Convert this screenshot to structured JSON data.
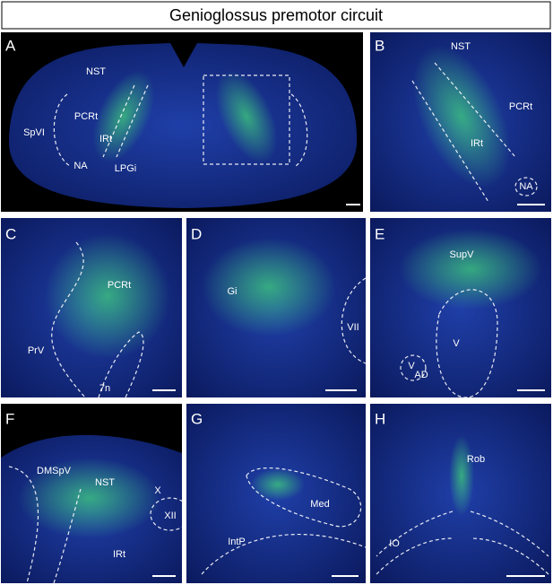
{
  "title": "Genioglossus premotor circuit",
  "panels": [
    {
      "letter": "A",
      "labels": [
        "NST",
        "PCRt",
        "SpVI",
        "IRt",
        "NA",
        "LPGi"
      ]
    },
    {
      "letter": "B",
      "labels": [
        "NST",
        "PCRt",
        "IRt",
        "NA"
      ]
    },
    {
      "letter": "C",
      "labels": [
        "PCRt",
        "PrV",
        "7n"
      ]
    },
    {
      "letter": "D",
      "labels": [
        "Gi",
        "VII"
      ]
    },
    {
      "letter": "E",
      "labels": [
        "SupV",
        "V",
        "V"
      ],
      "subscript": "AD"
    },
    {
      "letter": "F",
      "labels": [
        "DMSpV",
        "NST",
        "X",
        "XII",
        "IRt"
      ]
    },
    {
      "letter": "G",
      "labels": [
        "Med",
        "IntP"
      ]
    },
    {
      "letter": "H",
      "labels": [
        "Rob",
        "IO"
      ]
    }
  ]
}
